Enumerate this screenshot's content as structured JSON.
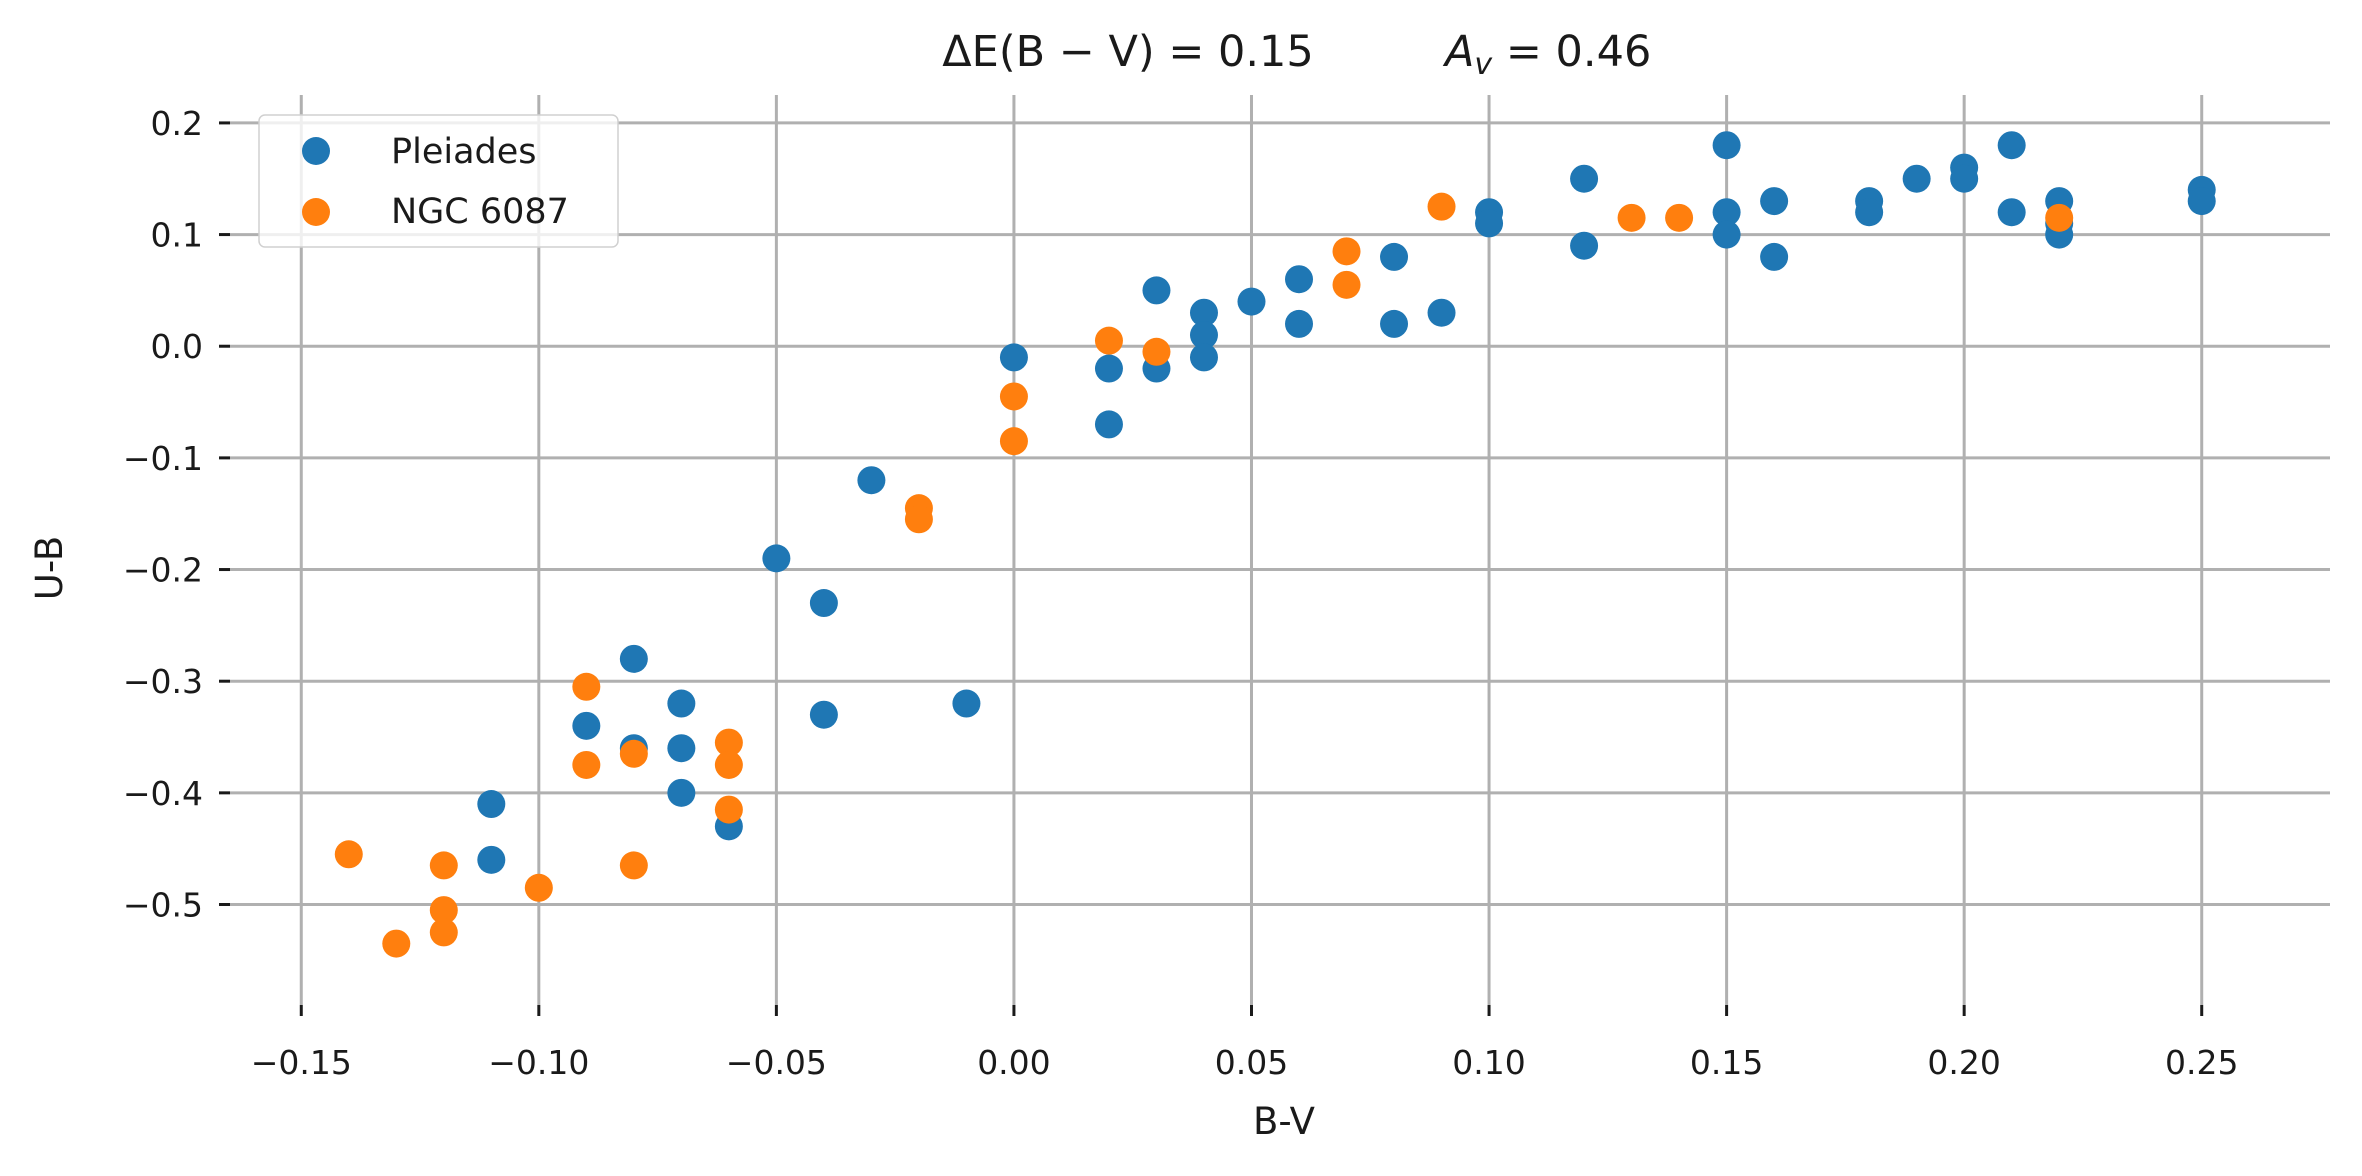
{
  "chart_data": {
    "type": "scatter",
    "title_left": "ΔE(B − V) = 0.15",
    "title_right": "A",
    "title_right_sub": "v",
    "title_right_value": " =  0.46",
    "xlabel": "B-V",
    "ylabel": "U-B",
    "xlim": [
      -0.165,
      0.277
    ],
    "ylim": [
      -0.59,
      0.225
    ],
    "x_ticks": [
      -0.15,
      -0.1,
      -0.05,
      0.0,
      0.05,
      0.1,
      0.15,
      0.2,
      0.25
    ],
    "x_tick_labels": [
      "−0.15",
      "−0.10",
      "−0.05",
      "0.00",
      "0.05",
      "0.10",
      "0.15",
      "0.20",
      "0.25"
    ],
    "y_ticks": [
      0.2,
      0.1,
      0.0,
      -0.1,
      -0.2,
      -0.3,
      -0.4,
      -0.5
    ],
    "y_tick_labels": [
      "0.2",
      "0.1",
      "0.0",
      "−0.1",
      "−0.2",
      "−0.3",
      "−0.4",
      "−0.5"
    ],
    "grid": true,
    "legend_position": "top-left",
    "series": [
      {
        "name": "Pleiades",
        "color": "#1f77b4",
        "points": [
          [
            -0.11,
            -0.41
          ],
          [
            -0.11,
            -0.46
          ],
          [
            -0.09,
            -0.34
          ],
          [
            -0.08,
            -0.28
          ],
          [
            -0.08,
            -0.36
          ],
          [
            -0.07,
            -0.32
          ],
          [
            -0.07,
            -0.36
          ],
          [
            -0.07,
            -0.4
          ],
          [
            -0.06,
            -0.43
          ],
          [
            -0.05,
            -0.19
          ],
          [
            -0.04,
            -0.23
          ],
          [
            -0.04,
            -0.33
          ],
          [
            -0.03,
            -0.12
          ],
          [
            -0.01,
            -0.32
          ],
          [
            0.0,
            -0.01
          ],
          [
            0.02,
            -0.02
          ],
          [
            0.02,
            -0.07
          ],
          [
            0.03,
            0.05
          ],
          [
            0.03,
            -0.02
          ],
          [
            0.04,
            0.03
          ],
          [
            0.04,
            0.01
          ],
          [
            0.04,
            -0.01
          ],
          [
            0.05,
            0.04
          ],
          [
            0.06,
            0.06
          ],
          [
            0.06,
            0.02
          ],
          [
            0.08,
            0.08
          ],
          [
            0.08,
            0.02
          ],
          [
            0.09,
            0.03
          ],
          [
            0.1,
            0.12
          ],
          [
            0.1,
            0.11
          ],
          [
            0.12,
            0.15
          ],
          [
            0.12,
            0.09
          ],
          [
            0.15,
            0.18
          ],
          [
            0.15,
            0.12
          ],
          [
            0.15,
            0.1
          ],
          [
            0.16,
            0.13
          ],
          [
            0.16,
            0.08
          ],
          [
            0.18,
            0.13
          ],
          [
            0.18,
            0.12
          ],
          [
            0.19,
            0.15
          ],
          [
            0.2,
            0.16
          ],
          [
            0.2,
            0.15
          ],
          [
            0.21,
            0.18
          ],
          [
            0.21,
            0.12
          ],
          [
            0.22,
            0.13
          ],
          [
            0.22,
            0.11
          ],
          [
            0.22,
            0.1
          ],
          [
            0.25,
            0.14
          ],
          [
            0.25,
            0.13
          ]
        ]
      },
      {
        "name": "NGC 6087",
        "color": "#ff7f0e",
        "points": [
          [
            -0.14,
            -0.455
          ],
          [
            -0.13,
            -0.535
          ],
          [
            -0.12,
            -0.465
          ],
          [
            -0.12,
            -0.505
          ],
          [
            -0.12,
            -0.525
          ],
          [
            -0.1,
            -0.485
          ],
          [
            -0.09,
            -0.305
          ],
          [
            -0.09,
            -0.375
          ],
          [
            -0.08,
            -0.365
          ],
          [
            -0.08,
            -0.465
          ],
          [
            -0.06,
            -0.355
          ],
          [
            -0.06,
            -0.375
          ],
          [
            -0.06,
            -0.415
          ],
          [
            -0.02,
            -0.145
          ],
          [
            -0.02,
            -0.155
          ],
          [
            0.0,
            -0.045
          ],
          [
            0.0,
            -0.085
          ],
          [
            0.02,
            0.005
          ],
          [
            0.03,
            -0.005
          ],
          [
            0.07,
            0.085
          ],
          [
            0.07,
            0.055
          ],
          [
            0.09,
            0.125
          ],
          [
            0.13,
            0.115
          ],
          [
            0.14,
            0.115
          ],
          [
            0.22,
            0.115
          ]
        ]
      }
    ]
  }
}
